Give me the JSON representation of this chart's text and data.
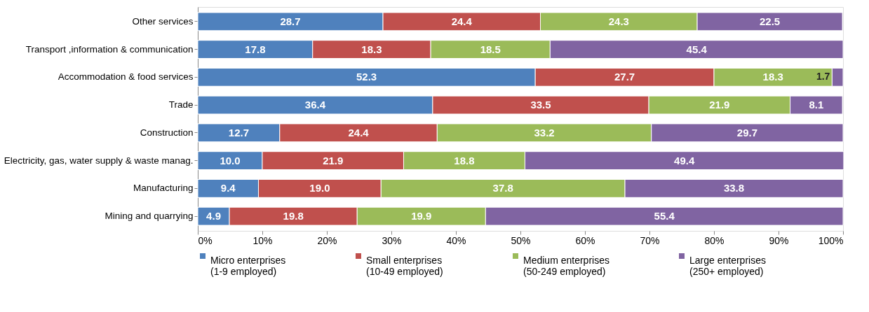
{
  "chart_data": {
    "type": "bar",
    "orientation": "horizontal",
    "stacked": true,
    "legend": "bottom",
    "grid": false,
    "categories": [
      "Other services",
      "Transport ,information & communication",
      "Accommodation & food services",
      "Trade",
      "Construction",
      "Electricity, gas, water supply & waste manag.",
      "Manufacturing",
      "Mining and quarrying"
    ],
    "series": [
      {
        "name": "Micro enterprises\n(1-9 employed)",
        "color": "#4f81bd",
        "values": [
          28.7,
          17.8,
          52.3,
          36.4,
          12.7,
          10.0,
          9.4,
          4.9
        ],
        "value_labels": [
          "28.7",
          "17.8",
          "52.3",
          "36.4",
          "12.7",
          "10.0",
          "9.4",
          "4.9"
        ]
      },
      {
        "name": "Small enterprises\n(10-49 employed)",
        "color": "#c0504d",
        "values": [
          24.4,
          18.3,
          27.7,
          33.5,
          24.4,
          21.9,
          19.0,
          19.8
        ],
        "value_labels": [
          "24.4",
          "18.3",
          "27.7",
          "33.5",
          "24.4",
          "21.9",
          "19.0",
          "19.8"
        ]
      },
      {
        "name": "Medium enterprises\n(50-249 employed)",
        "color": "#9bbb59",
        "values": [
          24.3,
          18.5,
          18.3,
          21.9,
          33.2,
          18.8,
          37.8,
          19.9
        ],
        "value_labels": [
          "24.3",
          "18.5",
          "18.3",
          "21.9",
          "33.2",
          "18.8",
          "37.8",
          "19.9"
        ]
      },
      {
        "name": "Large enterprises\n(250+ employed)",
        "color": "#8064a2",
        "values": [
          22.5,
          45.4,
          1.7,
          8.1,
          29.7,
          49.4,
          33.8,
          55.4
        ],
        "value_labels": [
          "22.5",
          "45.4",
          "1.7",
          "8.1",
          "29.7",
          "49.4",
          "33.8",
          "55.4"
        ]
      }
    ],
    "xlim": [
      0,
      100
    ],
    "xticks": [
      {
        "value": 0,
        "label": "0%"
      },
      {
        "value": 10,
        "label": "10%"
      },
      {
        "value": 20,
        "label": "20%"
      },
      {
        "value": 30,
        "label": "30%"
      },
      {
        "value": 40,
        "label": "40%"
      },
      {
        "value": 50,
        "label": "50%"
      },
      {
        "value": 60,
        "label": "60%"
      },
      {
        "value": 70,
        "label": "70%"
      },
      {
        "value": 80,
        "label": "80%"
      },
      {
        "value": 90,
        "label": "90%"
      },
      {
        "value": 100,
        "label": "100%"
      }
    ]
  }
}
